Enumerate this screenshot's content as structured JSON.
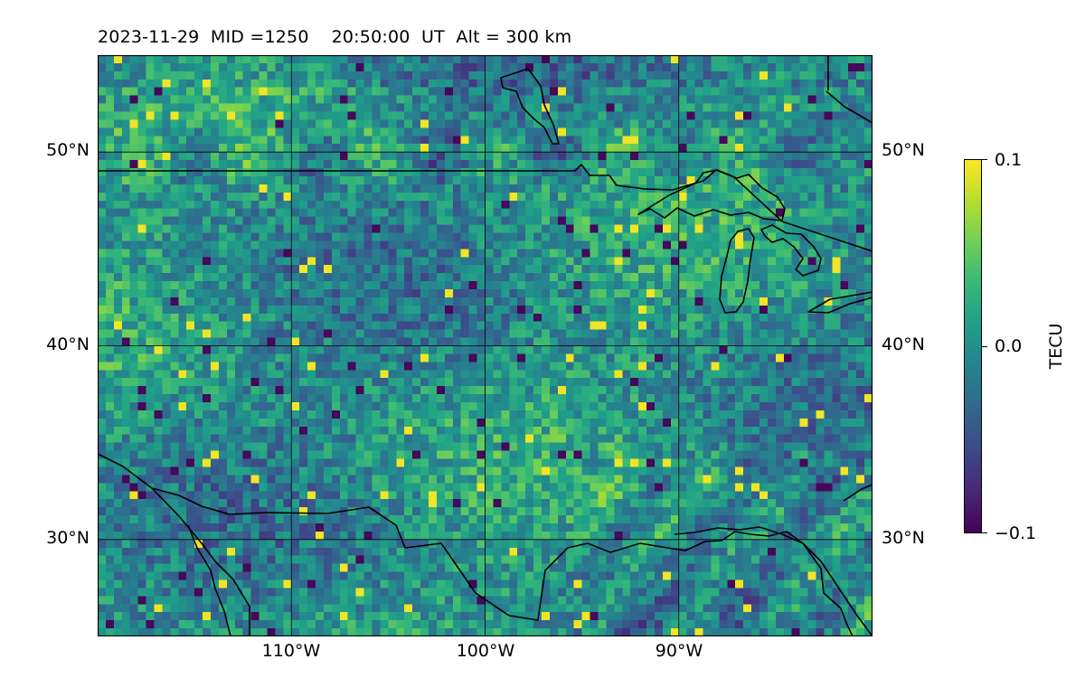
{
  "title": "2023-11-29  MID =1250    20:50:00  UT  Alt = 300 km",
  "map": {
    "lon_range": [
      -120,
      -80
    ],
    "lat_range": [
      25,
      55
    ],
    "gridlines": true,
    "lat_ticks": [
      {
        "value": 30,
        "label": "30°N"
      },
      {
        "value": 40,
        "label": "40°N"
      },
      {
        "value": 50,
        "label": "50°N"
      }
    ],
    "lon_ticks": [
      {
        "value": -110,
        "label": "110°W"
      },
      {
        "value": -100,
        "label": "100°W"
      },
      {
        "value": -90,
        "label": "90°W"
      }
    ],
    "colormap": "viridis",
    "value_range": [
      -0.1,
      0.1
    ]
  },
  "colorbar": {
    "label": "TECU",
    "ticks": [
      {
        "value": 0.1,
        "label": "0.1"
      },
      {
        "value": 0.0,
        "label": "0.0"
      },
      {
        "value": -0.1,
        "label": "−0.1"
      }
    ],
    "colors": [
      "#440154",
      "#482878",
      "#3e4989",
      "#31688e",
      "#26828e",
      "#1f9e89",
      "#35b779",
      "#6ece58",
      "#b5de2b",
      "#fde725"
    ]
  }
}
